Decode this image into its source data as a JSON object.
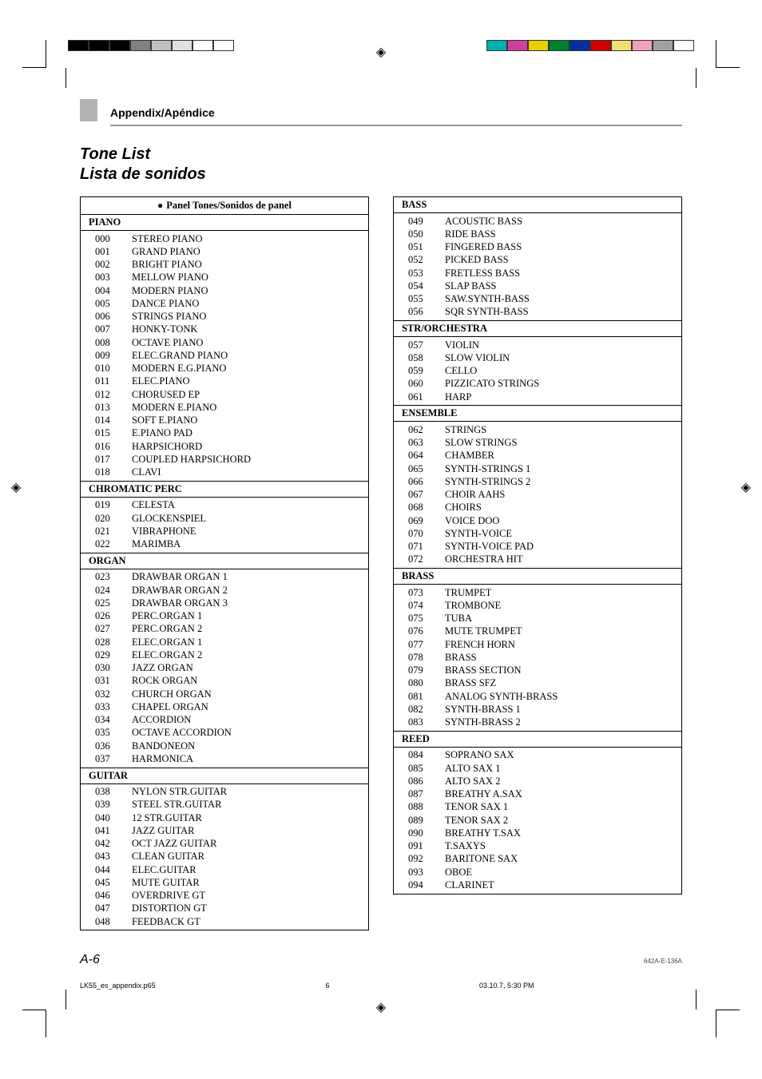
{
  "header": {
    "section_label": "Appendix/Apéndice",
    "title_en": "Tone List",
    "title_es": "Lista de sonidos",
    "panel_heading": "Panel Tones/Sonidos de panel"
  },
  "print": {
    "left_swatches": [
      "#000000",
      "#000000",
      "#000000",
      "#808080",
      "#c0c0c0",
      "#e0e0e0",
      "#ffffff",
      "#ffffff"
    ],
    "right_swatches": [
      "#00b0b0",
      "#d040a0",
      "#e8d000",
      "#008030",
      "#0030a0",
      "#d00000",
      "#f0e070",
      "#f0a0c0",
      "#a0a0a0",
      "#ffffff"
    ],
    "reg_glyph": "◈"
  },
  "left_column": [
    {
      "category": "PIANO",
      "items": [
        {
          "n": "000",
          "name": "STEREO PIANO"
        },
        {
          "n": "001",
          "name": "GRAND PIANO"
        },
        {
          "n": "002",
          "name": "BRIGHT PIANO"
        },
        {
          "n": "003",
          "name": "MELLOW PIANO"
        },
        {
          "n": "004",
          "name": "MODERN PIANO"
        },
        {
          "n": "005",
          "name": "DANCE PIANO"
        },
        {
          "n": "006",
          "name": "STRINGS PIANO"
        },
        {
          "n": "007",
          "name": "HONKY-TONK"
        },
        {
          "n": "008",
          "name": "OCTAVE PIANO"
        },
        {
          "n": "009",
          "name": "ELEC.GRAND PIANO"
        },
        {
          "n": "010",
          "name": "MODERN E.G.PIANO"
        },
        {
          "n": "011",
          "name": "ELEC.PIANO"
        },
        {
          "n": "012",
          "name": "CHORUSED EP"
        },
        {
          "n": "013",
          "name": "MODERN E.PIANO"
        },
        {
          "n": "014",
          "name": "SOFT E.PIANO"
        },
        {
          "n": "015",
          "name": "E.PIANO PAD"
        },
        {
          "n": "016",
          "name": "HARPSICHORD"
        },
        {
          "n": "017",
          "name": "COUPLED HARPSICHORD"
        },
        {
          "n": "018",
          "name": "CLAVI"
        }
      ]
    },
    {
      "category": "CHROMATIC PERC",
      "items": [
        {
          "n": "019",
          "name": "CELESTA"
        },
        {
          "n": "020",
          "name": "GLOCKENSPIEL"
        },
        {
          "n": "021",
          "name": "VIBRAPHONE"
        },
        {
          "n": "022",
          "name": "MARIMBA"
        }
      ]
    },
    {
      "category": "ORGAN",
      "items": [
        {
          "n": "023",
          "name": "DRAWBAR ORGAN 1"
        },
        {
          "n": "024",
          "name": "DRAWBAR ORGAN 2"
        },
        {
          "n": "025",
          "name": "DRAWBAR ORGAN 3"
        },
        {
          "n": "026",
          "name": "PERC.ORGAN 1"
        },
        {
          "n": "027",
          "name": "PERC.ORGAN 2"
        },
        {
          "n": "028",
          "name": "ELEC.ORGAN 1"
        },
        {
          "n": "029",
          "name": "ELEC.ORGAN 2"
        },
        {
          "n": "030",
          "name": "JAZZ ORGAN"
        },
        {
          "n": "031",
          "name": "ROCK ORGAN"
        },
        {
          "n": "032",
          "name": "CHURCH ORGAN"
        },
        {
          "n": "033",
          "name": "CHAPEL ORGAN"
        },
        {
          "n": "034",
          "name": "ACCORDION"
        },
        {
          "n": "035",
          "name": "OCTAVE ACCORDION"
        },
        {
          "n": "036",
          "name": "BANDONEON"
        },
        {
          "n": "037",
          "name": "HARMONICA"
        }
      ]
    },
    {
      "category": "GUITAR",
      "items": [
        {
          "n": "038",
          "name": "NYLON STR.GUITAR"
        },
        {
          "n": "039",
          "name": "STEEL STR.GUITAR"
        },
        {
          "n": "040",
          "name": "12 STR.GUITAR"
        },
        {
          "n": "041",
          "name": "JAZZ GUITAR"
        },
        {
          "n": "042",
          "name": "OCT JAZZ GUITAR"
        },
        {
          "n": "043",
          "name": "CLEAN GUITAR"
        },
        {
          "n": "044",
          "name": "ELEC.GUITAR"
        },
        {
          "n": "045",
          "name": "MUTE GUITAR"
        },
        {
          "n": "046",
          "name": "OVERDRIVE GT"
        },
        {
          "n": "047",
          "name": "DISTORTION GT"
        },
        {
          "n": "048",
          "name": "FEEDBACK GT"
        }
      ]
    }
  ],
  "right_column": [
    {
      "category": "BASS",
      "items": [
        {
          "n": "049",
          "name": "ACOUSTIC BASS"
        },
        {
          "n": "050",
          "name": "RIDE BASS"
        },
        {
          "n": "051",
          "name": "FINGERED BASS"
        },
        {
          "n": "052",
          "name": "PICKED BASS"
        },
        {
          "n": "053",
          "name": "FRETLESS BASS"
        },
        {
          "n": "054",
          "name": "SLAP BASS"
        },
        {
          "n": "055",
          "name": "SAW.SYNTH-BASS"
        },
        {
          "n": "056",
          "name": "SQR SYNTH-BASS"
        }
      ]
    },
    {
      "category": "STR/ORCHESTRA",
      "items": [
        {
          "n": "057",
          "name": "VIOLIN"
        },
        {
          "n": "058",
          "name": "SLOW VIOLIN"
        },
        {
          "n": "059",
          "name": "CELLO"
        },
        {
          "n": "060",
          "name": "PIZZICATO STRINGS"
        },
        {
          "n": "061",
          "name": "HARP"
        }
      ]
    },
    {
      "category": "ENSEMBLE",
      "items": [
        {
          "n": "062",
          "name": "STRINGS"
        },
        {
          "n": "063",
          "name": "SLOW STRINGS"
        },
        {
          "n": "064",
          "name": "CHAMBER"
        },
        {
          "n": "065",
          "name": "SYNTH-STRINGS 1"
        },
        {
          "n": "066",
          "name": "SYNTH-STRINGS 2"
        },
        {
          "n": "067",
          "name": "CHOIR AAHS"
        },
        {
          "n": "068",
          "name": "CHOIRS"
        },
        {
          "n": "069",
          "name": "VOICE DOO"
        },
        {
          "n": "070",
          "name": "SYNTH-VOICE"
        },
        {
          "n": "071",
          "name": "SYNTH-VOICE PAD"
        },
        {
          "n": "072",
          "name": "ORCHESTRA HIT"
        }
      ]
    },
    {
      "category": "BRASS",
      "items": [
        {
          "n": "073",
          "name": "TRUMPET"
        },
        {
          "n": "074",
          "name": "TROMBONE"
        },
        {
          "n": "075",
          "name": "TUBA"
        },
        {
          "n": "076",
          "name": "MUTE TRUMPET"
        },
        {
          "n": "077",
          "name": "FRENCH HORN"
        },
        {
          "n": "078",
          "name": "BRASS"
        },
        {
          "n": "079",
          "name": "BRASS SECTION"
        },
        {
          "n": "080",
          "name": "BRASS SFZ"
        },
        {
          "n": "081",
          "name": "ANALOG SYNTH-BRASS"
        },
        {
          "n": "082",
          "name": "SYNTH-BRASS 1"
        },
        {
          "n": "083",
          "name": "SYNTH-BRASS 2"
        }
      ]
    },
    {
      "category": "REED",
      "items": [
        {
          "n": "084",
          "name": "SOPRANO SAX"
        },
        {
          "n": "085",
          "name": "ALTO SAX 1"
        },
        {
          "n": "086",
          "name": "ALTO SAX 2"
        },
        {
          "n": "087",
          "name": "BREATHY A.SAX"
        },
        {
          "n": "088",
          "name": "TENOR SAX 1"
        },
        {
          "n": "089",
          "name": "TENOR SAX 2"
        },
        {
          "n": "090",
          "name": "BREATHY T.SAX"
        },
        {
          "n": "091",
          "name": "T.SAXYS"
        },
        {
          "n": "092",
          "name": "BARITONE SAX"
        },
        {
          "n": "093",
          "name": "OBOE"
        },
        {
          "n": "094",
          "name": "CLARINET"
        }
      ]
    }
  ],
  "footer": {
    "page": "A-6",
    "docid": "642A-E-136A",
    "file": "LK55_es_appendix.p65",
    "sheet": "6",
    "timestamp": "03.10.7, 5:30 PM"
  }
}
